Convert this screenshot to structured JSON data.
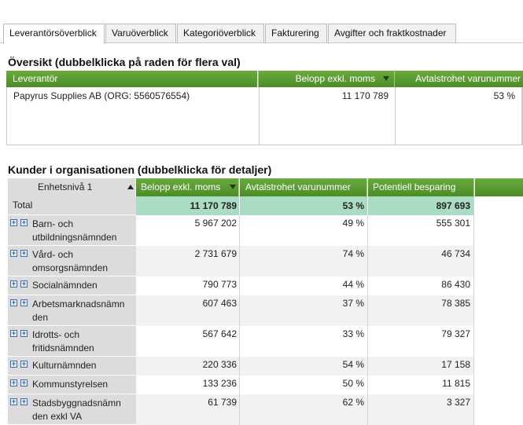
{
  "tabs": [
    {
      "label": "Leverantörsöverblick",
      "active": true
    },
    {
      "label": "Varuöverblick",
      "active": false
    },
    {
      "label": "Kategoriöverblick",
      "active": false
    },
    {
      "label": "Fakturering",
      "active": false
    },
    {
      "label": "Avgifter och fraktkostnader",
      "active": false
    }
  ],
  "overview": {
    "title": "Översikt (dubbelklicka på raden för flera val)",
    "headers": {
      "supplier": "Leverantör",
      "amount": "Belopp exkl. moms",
      "loyalty": "Avtalstrohet varunummer"
    },
    "row": {
      "supplier": "Papyrus Supplies AB (ORG: 5560576554)",
      "amount": "11 170 789",
      "loyalty": "53 %"
    }
  },
  "customers": {
    "title": "Kunder i organisationen (dubbelklicka för detaljer)",
    "headers": {
      "level": "Enhetsnivå 1",
      "amount": "Belopp exkl. moms",
      "loyalty": "Avtalstrohet varunummer",
      "saving": "Potentiell besparing"
    },
    "total": {
      "label": "Total",
      "amount": "11 170 789",
      "loyalty": "53 %",
      "saving": "897 693"
    },
    "rows": [
      {
        "line1": "Barn- och",
        "line2": "utbildningsnämnden",
        "amount": "5 967 202",
        "loyalty": "49 %",
        "saving": "555 301"
      },
      {
        "line1": "Vård- och",
        "line2": "omsorgsnämnden",
        "amount": "2 731 679",
        "loyalty": "74 %",
        "saving": "46 734"
      },
      {
        "line1": "Socialnämnden",
        "line2": "",
        "amount": "790 773",
        "loyalty": "44 %",
        "saving": "86 430"
      },
      {
        "line1": "Arbetsmarknadsnämn",
        "line2": "den",
        "amount": "607 463",
        "loyalty": "37 %",
        "saving": "78 385"
      },
      {
        "line1": "Idrotts- och",
        "line2": "fritidsnämnden",
        "amount": "567 642",
        "loyalty": "33 %",
        "saving": "79 327"
      },
      {
        "line1": "Kulturnämnden",
        "line2": "",
        "amount": "220 336",
        "loyalty": "54 %",
        "saving": "17 158"
      },
      {
        "line1": "Kommunstyrelsen",
        "line2": "",
        "amount": "133 236",
        "loyalty": "50 %",
        "saving": "11 815"
      },
      {
        "line1": "Stadsbyggnadsnämn",
        "line2": "den exkl VA",
        "amount": "61 739",
        "loyalty": "62 %",
        "saving": "3 327"
      }
    ]
  }
}
